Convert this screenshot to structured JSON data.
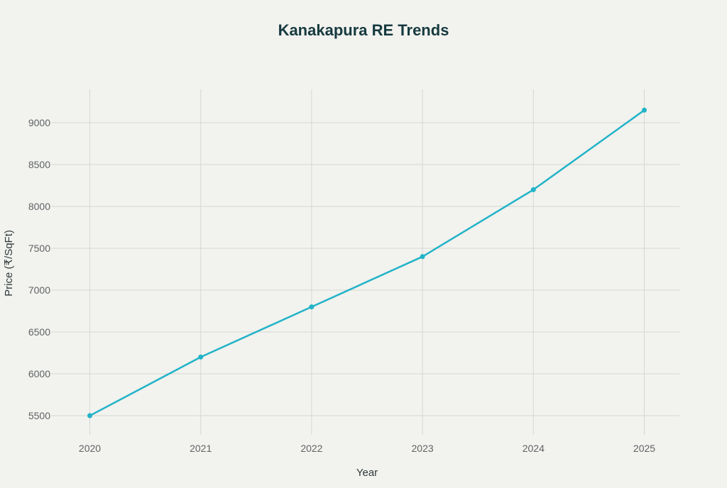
{
  "chart_data": {
    "type": "line",
    "title": "Kanakapura RE Trends",
    "xlabel": "Year",
    "ylabel": "Price (₹/SqFt)",
    "x": [
      "2020",
      "2021",
      "2022",
      "2023",
      "2024",
      "2025"
    ],
    "series": [
      {
        "values": [
          5500,
          6200,
          6800,
          7400,
          8200,
          9150
        ],
        "color": "#21b3c8"
      }
    ],
    "yticks": [
      5500,
      6000,
      6500,
      7000,
      7500,
      8000,
      8500,
      9000
    ],
    "ylim": [
      5300,
      9400
    ],
    "grid": true,
    "legend": "none"
  }
}
